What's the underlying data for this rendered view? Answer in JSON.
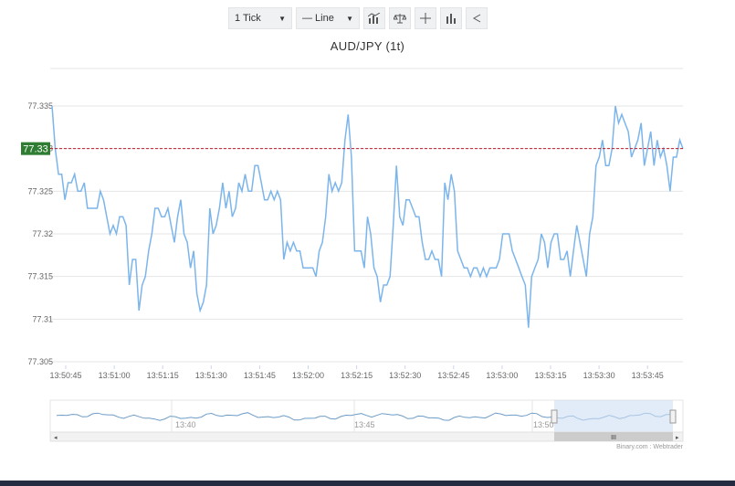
{
  "toolbar": {
    "tick_select": "1 Tick",
    "type_select": "— Line",
    "icons": [
      "indicators-icon",
      "compare-icon",
      "crosshair-icon",
      "bar-chart-icon",
      "share-icon"
    ]
  },
  "colors": {
    "line": "#7cb5ec",
    "last_price": "#c01a2d",
    "last_price_badge": "#2e7d32",
    "navigator_mask": "#cfe0f5",
    "footer": "#252c42"
  },
  "credits": "Binary.com : Webtrader",
  "chart_data": {
    "type": "line",
    "title": "AUD/JPY (1t)",
    "ylim": [
      77.305,
      77.335
    ],
    "y_ticks": [
      "77.305",
      "77.31",
      "77.315",
      "77.32",
      "77.325",
      "77.33",
      "77.335"
    ],
    "x_ticks": [
      "13:50:45",
      "13:51:00",
      "13:51:15",
      "13:51:30",
      "13:51:45",
      "13:52:00",
      "13:52:15",
      "13:52:30",
      "13:52:45",
      "13:53:00",
      "13:53:15",
      "13:53:30",
      "13:53:45"
    ],
    "last_price": 77.33,
    "last_price_label": "77.33",
    "series": [
      {
        "values": [
          77.335,
          77.33,
          77.327,
          77.327,
          77.324,
          77.326,
          77.326,
          77.327,
          77.325,
          77.325,
          77.326,
          77.323,
          77.323,
          77.323,
          77.323,
          77.325,
          77.324,
          77.322,
          77.32,
          77.321,
          77.32,
          77.322,
          77.322,
          77.321,
          77.314,
          77.317,
          77.317,
          77.311,
          77.314,
          77.315,
          77.318,
          77.32,
          77.323,
          77.323,
          77.322,
          77.322,
          77.323,
          77.321,
          77.319,
          77.322,
          77.324,
          77.32,
          77.319,
          77.316,
          77.318,
          77.313,
          77.311,
          77.312,
          77.314,
          77.323,
          77.32,
          77.321,
          77.323,
          77.326,
          77.323,
          77.325,
          77.322,
          77.323,
          77.326,
          77.325,
          77.327,
          77.325,
          77.325,
          77.328,
          77.328,
          77.326,
          77.324,
          77.324,
          77.325,
          77.324,
          77.325,
          77.324,
          77.317,
          77.319,
          77.318,
          77.319,
          77.318,
          77.318,
          77.316,
          77.316,
          77.316,
          77.316,
          77.315,
          77.318,
          77.319,
          77.322,
          77.327,
          77.325,
          77.326,
          77.325,
          77.326,
          77.331,
          77.334,
          77.329,
          77.318,
          77.318,
          77.318,
          77.316,
          77.322,
          77.32,
          77.316,
          77.315,
          77.312,
          77.314,
          77.314,
          77.315,
          77.321,
          77.328,
          77.322,
          77.321,
          77.324,
          77.324,
          77.323,
          77.322,
          77.322,
          77.319,
          77.317,
          77.317,
          77.318,
          77.317,
          77.317,
          77.315,
          77.326,
          77.324,
          77.327,
          77.325,
          77.318,
          77.317,
          77.316,
          77.316,
          77.315,
          77.316,
          77.316,
          77.315,
          77.316,
          77.315,
          77.316,
          77.316,
          77.316,
          77.317,
          77.32,
          77.32,
          77.32,
          77.318,
          77.317,
          77.316,
          77.315,
          77.314,
          77.309,
          77.315,
          77.316,
          77.317,
          77.32,
          77.319,
          77.316,
          77.319,
          77.32,
          77.32,
          77.317,
          77.317,
          77.318,
          77.315,
          77.318,
          77.321,
          77.319,
          77.317,
          77.315,
          77.32,
          77.322,
          77.328,
          77.329,
          77.331,
          77.328,
          77.328,
          77.33,
          77.335,
          77.333,
          77.334,
          77.333,
          77.332,
          77.329,
          77.33,
          77.331,
          77.333,
          77.328,
          77.33,
          77.332,
          77.328,
          77.331,
          77.329,
          77.33,
          77.328,
          77.325,
          77.329,
          77.329,
          77.331,
          77.33
        ]
      }
    ]
  },
  "navigator": {
    "labels": [
      "13:40",
      "13:45",
      "13:50"
    ]
  }
}
